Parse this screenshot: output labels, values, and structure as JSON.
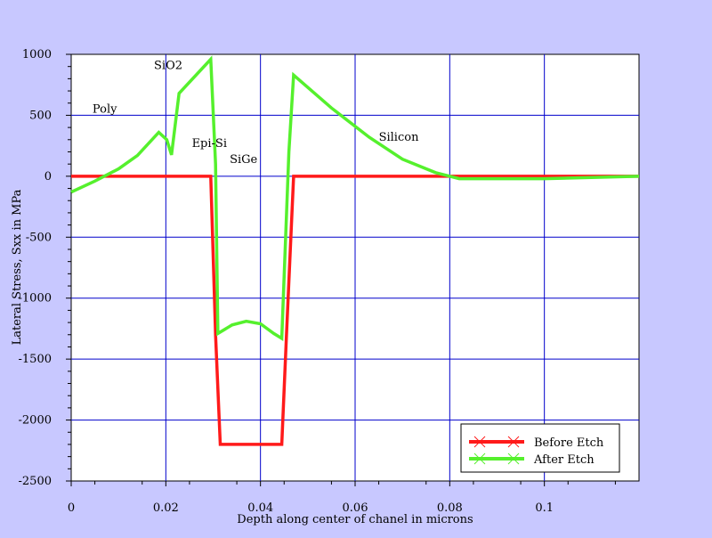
{
  "chart_data": {
    "type": "line",
    "xlabel": "Depth along center of chanel in microns",
    "ylabel": "Lateral Stress, Sxx in MPa",
    "xlim": [
      0,
      0.12
    ],
    "ylim": [
      -2500,
      1000
    ],
    "x_ticks": [
      0,
      0.02,
      0.04,
      0.06,
      0.08,
      0.1
    ],
    "x_tick_labels": [
      "0",
      "0.02",
      "0.04",
      "0.06",
      "0.08",
      "0.1"
    ],
    "y_ticks": [
      -2500,
      -2000,
      -1500,
      -1000,
      -500,
      0,
      500,
      1000
    ],
    "y_tick_labels": [
      "-2500",
      "-2000",
      "-1500",
      "-1000",
      "-500",
      "0",
      "500",
      "1000"
    ],
    "grid": true,
    "legend_position": "bottom-right",
    "annotations": [
      {
        "text": "Poly",
        "x": 0.0045,
        "y": 520
      },
      {
        "text": "SiO2",
        "x": 0.0175,
        "y": 880
      },
      {
        "text": "Epi-Si",
        "x": 0.0255,
        "y": 240
      },
      {
        "text": "SiGe",
        "x": 0.0335,
        "y": 110
      },
      {
        "text": "Silicon",
        "x": 0.065,
        "y": 290
      }
    ],
    "series": [
      {
        "name": "Before Etch",
        "color": "#ff1a1a",
        "points": [
          [
            0,
            0
          ],
          [
            0.0295,
            0
          ],
          [
            0.0305,
            -1300
          ],
          [
            0.0315,
            -2200
          ],
          [
            0.0445,
            -2200
          ],
          [
            0.0455,
            -1300
          ],
          [
            0.047,
            0
          ],
          [
            0.12,
            0
          ]
        ]
      },
      {
        "name": "After Etch",
        "color": "#55f02d",
        "points": [
          [
            0,
            -130
          ],
          [
            0.005,
            -40
          ],
          [
            0.01,
            60
          ],
          [
            0.014,
            170
          ],
          [
            0.0185,
            360
          ],
          [
            0.0202,
            300
          ],
          [
            0.0212,
            175
          ],
          [
            0.0228,
            680
          ],
          [
            0.0295,
            960
          ],
          [
            0.0305,
            100
          ],
          [
            0.031,
            -1290
          ],
          [
            0.034,
            -1220
          ],
          [
            0.037,
            -1190
          ],
          [
            0.04,
            -1210
          ],
          [
            0.0428,
            -1290
          ],
          [
            0.0445,
            -1330
          ],
          [
            0.046,
            200
          ],
          [
            0.047,
            830
          ],
          [
            0.055,
            560
          ],
          [
            0.063,
            320
          ],
          [
            0.07,
            140
          ],
          [
            0.077,
            30
          ],
          [
            0.082,
            -20
          ],
          [
            0.1,
            -20
          ],
          [
            0.11,
            -10
          ],
          [
            0.12,
            0
          ]
        ]
      }
    ]
  }
}
